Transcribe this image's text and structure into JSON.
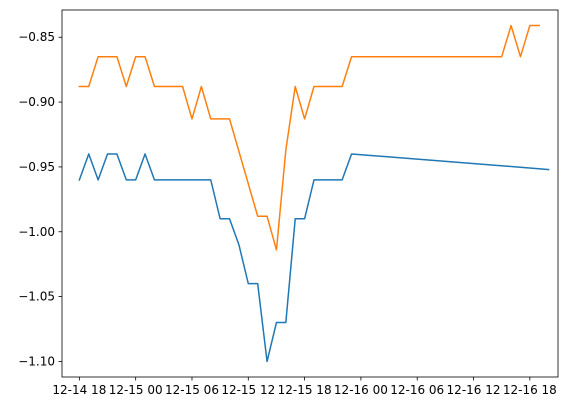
{
  "chart_data": {
    "type": "line",
    "title": "",
    "xlabel": "",
    "ylabel": "",
    "grid": false,
    "legend": "none",
    "x_start": "2023-12-14 18:00",
    "x_ticks": [
      {
        "label": "12-14 18",
        "x": "2023-12-14 18:00"
      },
      {
        "label": "12-15 00",
        "x": "2023-12-15 00:00"
      },
      {
        "label": "12-15 06",
        "x": "2023-12-15 06:00"
      },
      {
        "label": "12-15 12",
        "x": "2023-12-15 12:00"
      },
      {
        "label": "12-15 18",
        "x": "2023-12-15 18:00"
      },
      {
        "label": "12-16 00",
        "x": "2023-12-16 00:00"
      },
      {
        "label": "12-16 06",
        "x": "2023-12-16 06:00"
      },
      {
        "label": "12-16 12",
        "x": "2023-12-16 12:00"
      },
      {
        "label": "12-16 18",
        "x": "2023-12-16 18:00"
      }
    ],
    "xlim": [
      "2023-12-14 16:09",
      "2023-12-16 21:00"
    ],
    "ylim": [
      -1.112,
      -0.829
    ],
    "y_ticks": [
      -0.85,
      -0.9,
      -0.95,
      -1.0,
      -1.05,
      -1.1
    ],
    "y_tick_labels": [
      "−0.85",
      "−0.90",
      "−0.95",
      "−1.00",
      "−1.05",
      "−1.10"
    ],
    "series": [
      {
        "color": "#1f77b4",
        "points": [
          [
            "2023-12-14 18:00",
            -0.96
          ],
          [
            "2023-12-14 19:00",
            -0.94
          ],
          [
            "2023-12-14 20:00",
            -0.96
          ],
          [
            "2023-12-14 21:00",
            -0.94
          ],
          [
            "2023-12-14 22:00",
            -0.94
          ],
          [
            "2023-12-14 23:00",
            -0.96
          ],
          [
            "2023-12-15 00:00",
            -0.96
          ],
          [
            "2023-12-15 01:00",
            -0.94
          ],
          [
            "2023-12-15 02:00",
            -0.96
          ],
          [
            "2023-12-15 03:00",
            -0.96
          ],
          [
            "2023-12-15 04:00",
            -0.96
          ],
          [
            "2023-12-15 05:00",
            -0.96
          ],
          [
            "2023-12-15 06:00",
            -0.96
          ],
          [
            "2023-12-15 07:00",
            -0.96
          ],
          [
            "2023-12-15 08:00",
            -0.96
          ],
          [
            "2023-12-15 09:00",
            -0.99
          ],
          [
            "2023-12-15 10:00",
            -0.99
          ],
          [
            "2023-12-15 11:00",
            -1.01
          ],
          [
            "2023-12-15 12:00",
            -1.04
          ],
          [
            "2023-12-15 13:00",
            -1.04
          ],
          [
            "2023-12-15 14:00",
            -1.1
          ],
          [
            "2023-12-15 15:00",
            -1.07
          ],
          [
            "2023-12-15 16:00",
            -1.07
          ],
          [
            "2023-12-15 17:00",
            -0.99
          ],
          [
            "2023-12-15 18:00",
            -0.99
          ],
          [
            "2023-12-15 19:00",
            -0.96
          ],
          [
            "2023-12-15 20:00",
            -0.96
          ],
          [
            "2023-12-15 21:00",
            -0.96
          ],
          [
            "2023-12-15 22:00",
            -0.96
          ],
          [
            "2023-12-15 23:00",
            -0.94
          ],
          [
            "2023-12-16 20:00",
            -0.952
          ]
        ]
      },
      {
        "color": "#ff7f0e",
        "points": [
          [
            "2023-12-14 18:00",
            -0.888
          ],
          [
            "2023-12-14 19:00",
            -0.888
          ],
          [
            "2023-12-14 20:00",
            -0.865
          ],
          [
            "2023-12-14 21:00",
            -0.865
          ],
          [
            "2023-12-14 22:00",
            -0.865
          ],
          [
            "2023-12-14 23:00",
            -0.888
          ],
          [
            "2023-12-15 00:00",
            -0.865
          ],
          [
            "2023-12-15 01:00",
            -0.865
          ],
          [
            "2023-12-15 02:00",
            -0.888
          ],
          [
            "2023-12-15 03:00",
            -0.888
          ],
          [
            "2023-12-15 04:00",
            -0.888
          ],
          [
            "2023-12-15 05:00",
            -0.888
          ],
          [
            "2023-12-15 06:00",
            -0.913
          ],
          [
            "2023-12-15 07:00",
            -0.888
          ],
          [
            "2023-12-15 08:00",
            -0.913
          ],
          [
            "2023-12-15 09:00",
            -0.913
          ],
          [
            "2023-12-15 10:00",
            -0.913
          ],
          [
            "2023-12-15 13:00",
            -0.988
          ],
          [
            "2023-12-15 14:00",
            -0.988
          ],
          [
            "2023-12-15 15:00",
            -1.014
          ],
          [
            "2023-12-15 16:00",
            -0.937
          ],
          [
            "2023-12-15 17:00",
            -0.888
          ],
          [
            "2023-12-15 18:00",
            -0.913
          ],
          [
            "2023-12-15 19:00",
            -0.888
          ],
          [
            "2023-12-15 20:00",
            -0.888
          ],
          [
            "2023-12-15 21:00",
            -0.888
          ],
          [
            "2023-12-15 22:00",
            -0.888
          ],
          [
            "2023-12-15 23:00",
            -0.865
          ],
          [
            "2023-12-16 15:00",
            -0.865
          ],
          [
            "2023-12-16 16:00",
            -0.841
          ],
          [
            "2023-12-16 17:00",
            -0.865
          ],
          [
            "2023-12-16 18:00",
            -0.841
          ],
          [
            "2023-12-16 19:00",
            -0.841
          ]
        ]
      }
    ]
  }
}
